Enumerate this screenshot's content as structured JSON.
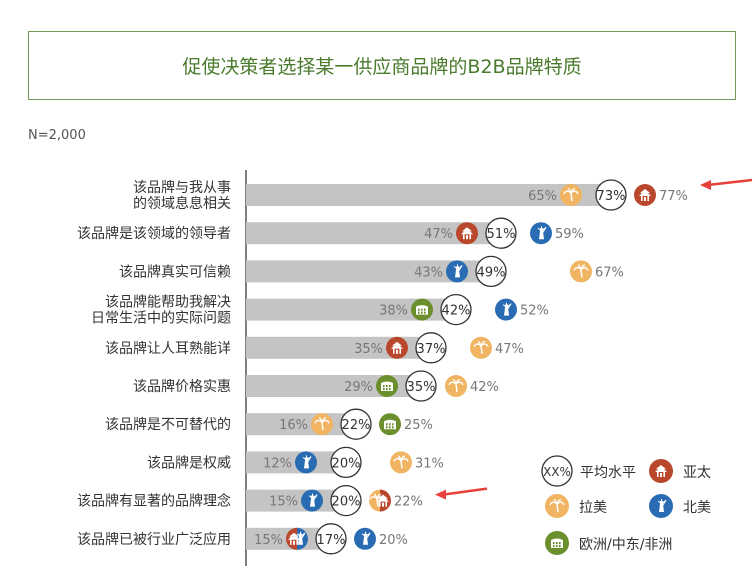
{
  "title": "促使决策者选择某一供应商品牌的B2B品牌特质",
  "sample": "N=2,000",
  "colors": {
    "bar": "#c4c4c4",
    "average": "#ffffff",
    "apac": "#b9472c",
    "latam": "#f0b463",
    "na": "#2a6cb3",
    "emea": "#6c8f2d",
    "pct_text": "#777777",
    "arrow": "#e8403a"
  },
  "legend": [
    {
      "key": "avg",
      "symbol": "XX%",
      "label": "平均水平",
      "icon": "circle-outline"
    },
    {
      "key": "apac",
      "label": "亚太",
      "icon": "pagoda-icon"
    },
    {
      "key": "latam",
      "label": "拉美",
      "icon": "palm-tree-icon"
    },
    {
      "key": "na",
      "label": "北美",
      "icon": "statue-of-liberty-icon"
    },
    {
      "key": "emea",
      "label": "欧洲/中东/非洲",
      "icon": "colosseum-icon"
    }
  ],
  "chart_data": {
    "type": "bar",
    "xlim": [
      0,
      100
    ],
    "categories": [
      "该品牌与我从事\n的领域息息相关",
      "该品牌是该领域的领导者",
      "该品牌真实可信赖",
      "该品牌能帮助我解决\n日常生活中的实际问题",
      "该品牌让人耳熟能详",
      "该品牌价格实惠",
      "该品牌是不可替代的",
      "该品牌是权威",
      "该品牌有显著的品牌理念",
      "该品牌已被行业广泛应用"
    ],
    "average": [
      73,
      51,
      49,
      42,
      37,
      35,
      22,
      20,
      20,
      17
    ],
    "series": [
      {
        "name": "亚太",
        "key": "apac",
        "values": [
          77,
          47,
          null,
          null,
          35,
          null,
          null,
          null,
          22,
          15
        ]
      },
      {
        "name": "拉美",
        "key": "latam",
        "values": [
          65,
          null,
          67,
          null,
          47,
          42,
          16,
          31,
          22,
          null
        ]
      },
      {
        "name": "北美",
        "key": "na",
        "values": [
          null,
          59,
          43,
          52,
          null,
          null,
          null,
          12,
          15,
          20
        ]
      },
      {
        "name": "欧洲/中东/非洲",
        "key": "emea",
        "values": [
          null,
          null,
          null,
          38,
          null,
          29,
          25,
          null,
          null,
          null
        ]
      }
    ],
    "labels": [
      [
        {
          "k": "latam",
          "v": "65%",
          "side": "left"
        },
        {
          "k": "apac",
          "v": "77%",
          "side": "right"
        }
      ],
      [
        {
          "k": "apac",
          "v": "47%",
          "side": "left"
        },
        {
          "k": "na",
          "v": "59%",
          "side": "right"
        }
      ],
      [
        {
          "k": "na",
          "v": "43%",
          "side": "left"
        },
        {
          "k": "latam",
          "v": "67%",
          "side": "right"
        }
      ],
      [
        {
          "k": "emea",
          "v": "38%",
          "side": "left"
        },
        {
          "k": "na",
          "v": "52%",
          "side": "right"
        }
      ],
      [
        {
          "k": "apac",
          "v": "35%",
          "side": "left"
        },
        {
          "k": "latam",
          "v": "47%",
          "side": "right"
        }
      ],
      [
        {
          "k": "emea",
          "v": "29%",
          "side": "left"
        },
        {
          "k": "latam",
          "v": "42%",
          "side": "right"
        }
      ],
      [
        {
          "k": "latam",
          "v": "16%",
          "side": "left"
        },
        {
          "k": "emea",
          "v": "25%",
          "side": "right"
        }
      ],
      [
        {
          "k": "na",
          "v": "12%",
          "side": "left"
        },
        {
          "k": "latam",
          "v": "31%",
          "side": "right"
        }
      ],
      [
        {
          "k": "na",
          "v": "15%",
          "side": "left"
        },
        {
          "k": "apac",
          "v": "22%",
          "side": "right",
          "split": "latam"
        }
      ],
      [
        {
          "k": "apac",
          "v": "15%",
          "side": "left",
          "split": "na"
        },
        {
          "k": "na",
          "v": "20%",
          "side": "right"
        }
      ]
    ],
    "highlight_rows": [
      0,
      8
    ]
  }
}
